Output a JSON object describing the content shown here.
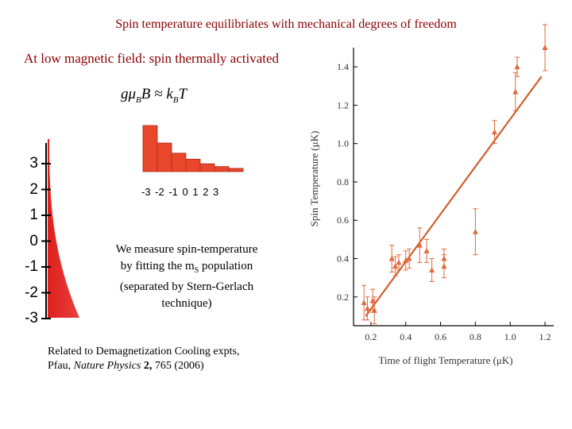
{
  "slide": {
    "title": "Spin temperature equilibriates with mechanical degrees of freedom",
    "subtitle": "At low magnetic field: spin thermally activated",
    "formula": {
      "g": "g",
      "mu": "μ",
      "sub": "B",
      "rest": "B ≈ k",
      "sub2": "B",
      "t": "T"
    },
    "bar_tick_labels": "-3 -2 -1 0 1 2 3",
    "ms_axis_labels": [
      "3",
      "2",
      "1",
      "0",
      "-1",
      "-2",
      "-3"
    ],
    "measure_text": {
      "line1": "We measure spin-temperature",
      "line2a": "by fitting the m",
      "line2sub": "S",
      "line2b": " population",
      "line3": "(separated by Stern-Gerlach",
      "line4": "technique)"
    },
    "reference": {
      "line1": "Related to Demagnetization Cooling expts,",
      "author": "Pfau, ",
      "journal": "Nature Physics",
      "volume": " 2,",
      "pages": " 765 (2006)"
    },
    "colors": {
      "title": "#8b0000",
      "bars": "#e8472b",
      "scatter": "#e06a3c",
      "fit": "#d0602c",
      "gradient": "#e0201c"
    }
  },
  "chart_data": [
    {
      "type": "bar",
      "categories": [
        "-3",
        "-2",
        "-1",
        "0",
        "1",
        "2",
        "3"
      ],
      "values": [
        1.0,
        0.62,
        0.4,
        0.27,
        0.17,
        0.11,
        0.07
      ],
      "ylim": [
        0,
        1
      ]
    },
    {
      "type": "scatter",
      "xlabel": "Time of flight Temperature (μK)",
      "ylabel": "Spin Temperature (μK)",
      "xlim": [
        0.1,
        1.25
      ],
      "ylim": [
        0.05,
        1.5
      ],
      "x_ticks": [
        "0.2",
        "0.4",
        "0.6",
        "0.8",
        "1.0",
        "1.2"
      ],
      "y_ticks": [
        "0.2",
        "0.4",
        "0.6",
        "0.8",
        "1.0",
        "1.2",
        "1.4"
      ],
      "points": [
        {
          "x": 0.16,
          "y": 0.17,
          "err": 0.09
        },
        {
          "x": 0.18,
          "y": 0.14,
          "err": 0.06
        },
        {
          "x": 0.21,
          "y": 0.18,
          "err": 0.06
        },
        {
          "x": 0.22,
          "y": 0.13,
          "err": 0.07
        },
        {
          "x": 0.32,
          "y": 0.4,
          "err": 0.07
        },
        {
          "x": 0.34,
          "y": 0.36,
          "err": 0.05
        },
        {
          "x": 0.36,
          "y": 0.38,
          "err": 0.04
        },
        {
          "x": 0.4,
          "y": 0.39,
          "err": 0.05
        },
        {
          "x": 0.42,
          "y": 0.4,
          "err": 0.05
        },
        {
          "x": 0.48,
          "y": 0.47,
          "err": 0.09
        },
        {
          "x": 0.52,
          "y": 0.44,
          "err": 0.06
        },
        {
          "x": 0.55,
          "y": 0.34,
          "err": 0.06
        },
        {
          "x": 0.62,
          "y": 0.4,
          "err": 0.05
        },
        {
          "x": 0.62,
          "y": 0.36,
          "err": 0.06
        },
        {
          "x": 0.8,
          "y": 0.54,
          "err": 0.12
        },
        {
          "x": 0.91,
          "y": 1.06,
          "err": 0.06
        },
        {
          "x": 1.03,
          "y": 1.27,
          "err": 0.1
        },
        {
          "x": 1.04,
          "y": 1.4,
          "err": 0.05
        },
        {
          "x": 1.2,
          "y": 1.5,
          "err": 0.12
        }
      ],
      "fit_line": {
        "x": [
          0.17,
          1.18
        ],
        "y": [
          0.1,
          1.35
        ]
      }
    }
  ]
}
